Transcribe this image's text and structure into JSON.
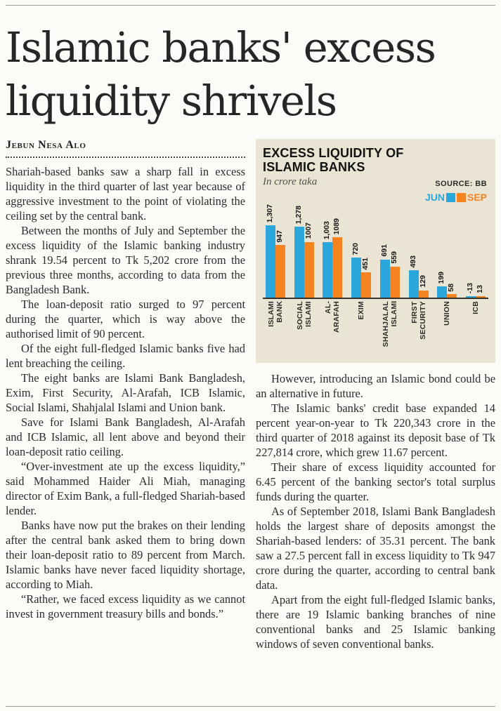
{
  "page": {
    "headline": "Islamic banks' excess liquidity shrivels",
    "byline": "Jebun Nesa Alo"
  },
  "article": {
    "left_paragraphs": [
      "Shariah-based banks saw a sharp fall in excess liquidity in the third quarter of last year because of aggressive investment to the point of violating the ceiling set by the central bank.",
      "Between the months of July and September the excess liquidity of the Islamic banking industry shrank 19.54 percent to Tk 5,202 crore from the previous three months, according to data from the Bangladesh Bank.",
      "The loan-deposit ratio surged to 97 percent during the quarter, which is way above the authorised limit of 90 percent.",
      "Of the eight full-fledged Islamic banks five had lent breaching the ceiling.",
      "The eight banks are Islami Bank Bangladesh, Exim, First Security, Al-Arafah, ICB Islamic, Social Islami, Shahjalal Islami and Union bank.",
      "Save for Islami Bank Bangladesh, Al-Arafah and ICB Islamic, all lent above and beyond their loan-deposit ratio ceiling.",
      "“Over-investment ate up the excess liquidity,” said Mohammed Haider Ali Miah, managing director of Exim Bank, a full-fledged Shariah-based lender.",
      "Banks have now put the brakes on their lending after the central bank asked them to bring down their loan-deposit ratio to 89 percent from March. Islamic banks have never faced liquidity shortage, according to Miah.",
      "“Rather, we faced excess liquidity as we cannot invest in government treasury bills and bonds.”"
    ],
    "right_paragraphs": [
      "However, introducing an Islamic bond could be an alternative in future.",
      "The Islamic banks' credit base expanded 14 percent year-on-year to Tk 220,343 crore in the third quarter of 2018 against its deposit base of Tk 227,814 crore, which grew 11.67 percent.",
      "Their share of excess liquidity accounted for 6.45 percent of the banking sector's total surplus funds during the quarter.",
      "As of September 2018, Islami Bank Bangladesh holds the largest share of deposits amongst the Shariah-based lenders: of 35.31 percent. The bank saw a 27.5 percent fall in excess liquidity to Tk 947 crore during the quarter, according to central bank data.",
      "Apart from the eight full-fledged Islamic banks, there are 19 Islamic banking branches of nine conventional banks and 25 Islamic banking windows of seven conventional banks."
    ]
  },
  "chart": {
    "title_lines": [
      "EXCESS LIQUIDITY OF",
      "ISLAMIC BANKS"
    ],
    "subtitle": "In crore taka",
    "source_label": "SOURCE:",
    "source_value": "BB",
    "legend": [
      {
        "label": "JUN",
        "color": "#2aa7dd"
      },
      {
        "label": "SEP",
        "color": "#f5831f"
      }
    ]
  },
  "chart_data": {
    "type": "bar",
    "title": "EXCESS LIQUIDITY OF ISLAMIC BANKS",
    "subtitle": "In crore taka",
    "source": "BB",
    "categories": [
      "ISLAMI BANK",
      "SOCIAL ISLAMI",
      "AL-ARAFAH",
      "EXIM",
      "SHAHJALAL ISLAMI",
      "FIRST SECURITY",
      "UNION",
      "ICB"
    ],
    "category_label_lines": [
      [
        "ISLAMI",
        "BANK"
      ],
      [
        "SOCIAL",
        "ISLAMI"
      ],
      [
        "AL-",
        "ARAFAH"
      ],
      [
        "EXIM"
      ],
      [
        "SHAHJALAL",
        "ISLAMI"
      ],
      [
        "FIRST",
        "SECURITY"
      ],
      [
        "UNION"
      ],
      [
        "ICB"
      ]
    ],
    "series": [
      {
        "name": "JUN",
        "color": "#2aa7dd",
        "values": [
          1307,
          1278,
          1003,
          720,
          691,
          493,
          199,
          -13
        ],
        "labels": [
          "1,307",
          "1,278",
          "1,003",
          "720",
          "691",
          "493",
          "199",
          "-13"
        ]
      },
      {
        "name": "SEP",
        "color": "#f5831f",
        "values": [
          947,
          1007,
          1089,
          451,
          559,
          129,
          58,
          13
        ],
        "labels": [
          "947",
          "1007",
          "1089",
          "451",
          "559",
          "129",
          "58",
          "13"
        ]
      }
    ],
    "ylim": [
      0,
      1400
    ],
    "grid": false,
    "legend_position": "top-right"
  }
}
